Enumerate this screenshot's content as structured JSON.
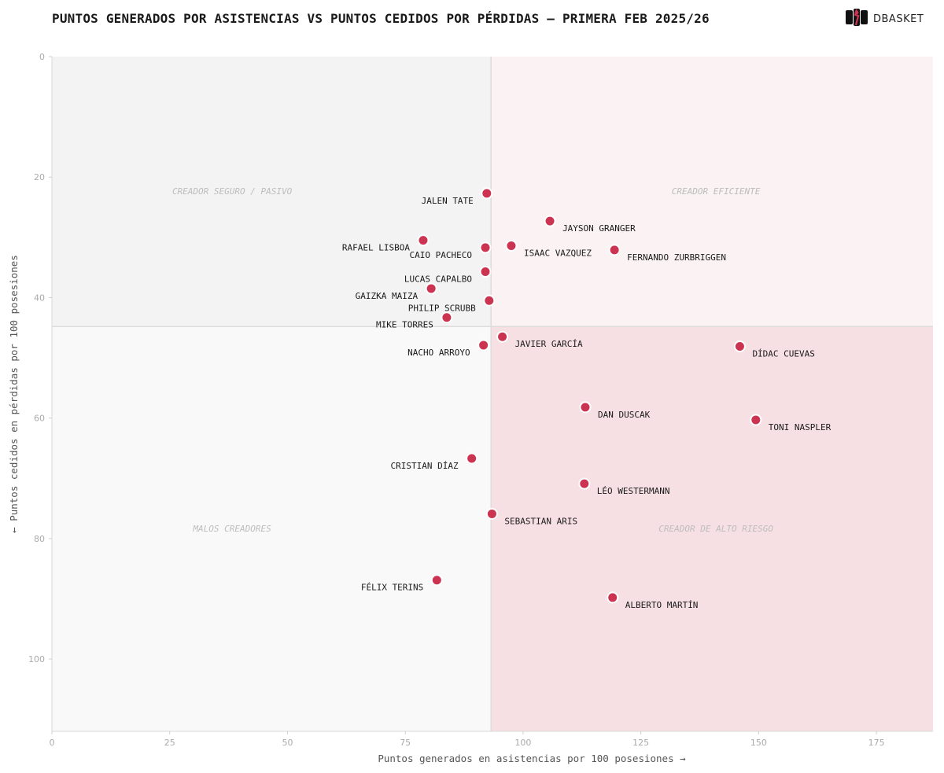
{
  "title": "PUNTOS GENERADOS POR ASISTENCIAS VS PUNTOS CEDIDOS POR PÉRDIDAS — PRIMERA FEB 2025/26",
  "brand": "DBASKET",
  "colors": {
    "point": "#cc3350",
    "quad_top_left": "#f3f3f3",
    "quad_top_right": "#faf2f3",
    "quad_bottom_left": "#f9f9f9",
    "quad_bottom_right": "#f7e0e4",
    "divider": "#dcdcdc",
    "quadrant_label": "#bdbdbd",
    "axis_text": "#aaaaaa",
    "axis_label": "#555555",
    "point_label": "#1a1a1a"
  },
  "chart_data": {
    "type": "scatter",
    "title": "PUNTOS GENERADOS POR ASISTENCIAS VS PUNTOS CEDIDOS POR PÉRDIDAS — PRIMERA FEB 2025/26",
    "xlabel": "Puntos generados en asistencias por 100 posesiones →",
    "ylabel": "← Puntos cedidos en pérdidas por 100 posesiones",
    "xlim": [
      0,
      187
    ],
    "ylim": [
      0,
      112
    ],
    "y_inverted": true,
    "x_ticks": [
      0,
      25,
      50,
      75,
      100,
      125,
      150,
      175
    ],
    "y_ticks": [
      0,
      20,
      40,
      60,
      80,
      100
    ],
    "x_divider": 93.2,
    "y_divider": 44.8,
    "quadrant_labels": {
      "top_left": "CREADOR SEGURO / PASIVO",
      "top_right": "CREADOR EFICIENTE",
      "bottom_left": "MALOS CREADORES",
      "bottom_right": "CREADOR DE ALTO RIESGO"
    },
    "points": [
      {
        "name": "JALEN TATE",
        "x": 92.3,
        "y": 22.7,
        "label_side": "left"
      },
      {
        "name": "JAYSON GRANGER",
        "x": 105.7,
        "y": 27.3,
        "label_side": "right"
      },
      {
        "name": "RAFAEL LISBOA",
        "x": 78.8,
        "y": 30.5,
        "label_side": "left"
      },
      {
        "name": "CAIO PACHECO",
        "x": 92.0,
        "y": 31.7,
        "label_side": "left"
      },
      {
        "name": "ISAAC VAZQUEZ",
        "x": 97.5,
        "y": 31.4,
        "label_side": "right"
      },
      {
        "name": "FERNANDO ZURBRIGGEN",
        "x": 119.4,
        "y": 32.1,
        "label_side": "right"
      },
      {
        "name": "LUCAS CAPALBO",
        "x": 92.0,
        "y": 35.7,
        "label_side": "left"
      },
      {
        "name": "GAIZKA MAIZA",
        "x": 80.5,
        "y": 38.5,
        "label_side": "left"
      },
      {
        "name": "PHILIP SCRUBB",
        "x": 92.8,
        "y": 40.5,
        "label_side": "left"
      },
      {
        "name": "MIKE TORRES",
        "x": 83.8,
        "y": 43.3,
        "label_side": "left"
      },
      {
        "name": "JAVIER GARCÍA",
        "x": 95.6,
        "y": 46.5,
        "label_side": "right"
      },
      {
        "name": "NACHO ARROYO",
        "x": 91.6,
        "y": 47.9,
        "label_side": "left"
      },
      {
        "name": "DÍDAC CUEVAS",
        "x": 146.0,
        "y": 48.1,
        "label_side": "right"
      },
      {
        "name": "DAN DUSCAK",
        "x": 113.2,
        "y": 58.2,
        "label_side": "right"
      },
      {
        "name": "TONI NASPLER",
        "x": 149.4,
        "y": 60.3,
        "label_side": "right"
      },
      {
        "name": "CRISTIAN DÍAZ",
        "x": 89.1,
        "y": 66.7,
        "label_side": "left"
      },
      {
        "name": "LÉO WESTERMANN",
        "x": 113.0,
        "y": 70.9,
        "label_side": "right"
      },
      {
        "name": "SEBASTIAN ARIS",
        "x": 93.4,
        "y": 75.9,
        "label_side": "right"
      },
      {
        "name": "FÉLIX TERINS",
        "x": 81.7,
        "y": 86.9,
        "label_side": "left"
      },
      {
        "name": "ALBERTO MARTÍN",
        "x": 119.0,
        "y": 89.8,
        "label_side": "right"
      }
    ]
  }
}
